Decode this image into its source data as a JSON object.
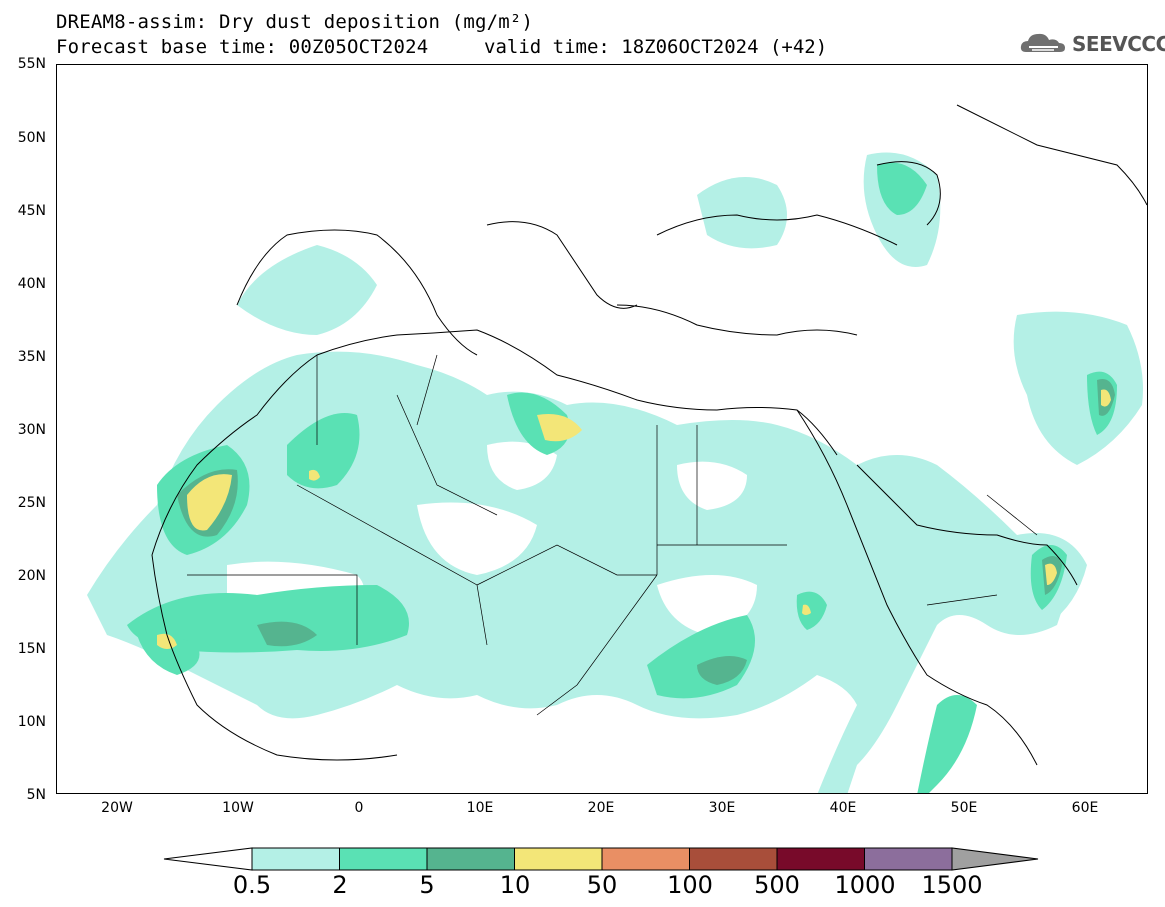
{
  "header": {
    "title_line1": "DREAM8-assim: Dry dust deposition (mg/m²)",
    "title_line2": "Forecast base time: 00Z05OCT2024",
    "valid_time": "valid time: 18Z06OCT2024 (+42)",
    "logo_text": "SEEVCCC",
    "logo_icon": "cloud-logo-icon"
  },
  "map": {
    "lat_labels": [
      "55N",
      "50N",
      "45N",
      "40N",
      "35N",
      "30N",
      "25N",
      "20N",
      "15N",
      "10N",
      "5N"
    ],
    "lon_labels": [
      "20W",
      "10W",
      "0",
      "10E",
      "20E",
      "30E",
      "40E",
      "50E",
      "60E"
    ],
    "lon_range": [
      -25,
      65
    ],
    "lat_range": [
      5,
      55
    ]
  },
  "legend": {
    "labels": [
      "0.5",
      "2",
      "5",
      "10",
      "50",
      "100",
      "500",
      "1000",
      "1500"
    ],
    "colors": [
      "#ffffff",
      "#b4f0e6",
      "#5ae1b4",
      "#55b48f",
      "#f3e678",
      "#e98f64",
      "#a84e3a",
      "#780a2a",
      "#8c6e9c",
      "#a0a0a0"
    ]
  }
}
